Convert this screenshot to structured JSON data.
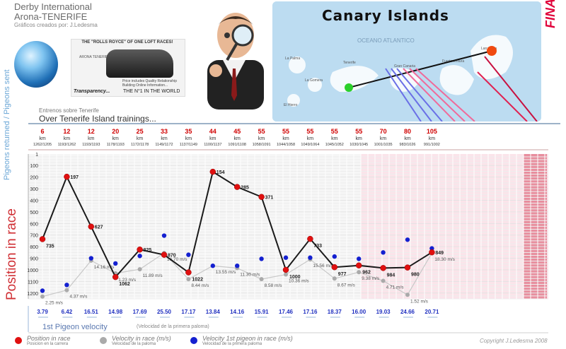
{
  "header": {
    "line1": "Derby International",
    "line2": "Arona-TENERIFE",
    "line3": "Gráficos creados por: J.Ledesma"
  },
  "ad": {
    "title": "THE \"ROLLS ROYCE\" OF ONE LOFT RACES!",
    "brand": "ARONA TENERIFE",
    "sub1": "Price includes Quality Relationship",
    "sub2": "Building Online Information...",
    "sub3": "",
    "transparency": "Transparency...",
    "n1": "THE N°1 IN THE WORLD"
  },
  "map": {
    "title": "Canary Islands",
    "ocean": "OCEANO ATLANTICO",
    "islands": [
      "Lanzarote",
      "Fuerteventura",
      "Gran Canaria",
      "Tenerife",
      "La Gomera",
      "La Palma",
      "El Hierro"
    ]
  },
  "final_race": "FINAL RACE",
  "section": {
    "small": "Entrenos sobre Tenerife",
    "big": "Over Tenerife Island trainings..."
  },
  "axis_labels": {
    "pigeons": "Pigeons returned / Pigeons sent",
    "position": "Position in race"
  },
  "first_velocity": {
    "label": "1st Pigeon velocity",
    "sub": "(Velocidad de la primera paloma)"
  },
  "legend": {
    "pos": "Position in race",
    "pos_sub": "Posicion en la carrera",
    "vel": "Velocity in race (m/s)",
    "vel_sub": "Velocidad de la paloma",
    "first": "Velocity 1st pigeon in race (m/s)",
    "first_sub": "Velocidad de la primera paloma"
  },
  "copyright": "Copyright J.Ledesma 2008",
  "colors": {
    "position": "#e01010",
    "velocity": "#aaaaaa",
    "first_velocity": "#1420d0",
    "distance": "#d00000",
    "final_band": "#fbe4ea",
    "final_band_dark": "#e88e9e"
  },
  "chart_data": {
    "type": "line",
    "km_unit": "km",
    "distances_km": [
      "6",
      "12",
      "12",
      "20",
      "25",
      "33",
      "35",
      "44",
      "45",
      "55",
      "55",
      "55",
      "55",
      "55",
      "70",
      "80",
      "105"
    ],
    "pigeons": [
      "1262/1205",
      "1193/1262",
      "1193/1193",
      "1178/1193",
      "1172/1178",
      "1149/1172",
      "1137/1149",
      "1100/1137",
      "1091/1108",
      "1058/1091",
      "1044/1058",
      "1049/1064",
      "1045/1052",
      "1030/1045",
      "1001/1035",
      "983/1026",
      "991/1002"
    ],
    "y_ticks": [
      "1",
      "100",
      "200",
      "300",
      "400",
      "500",
      "600",
      "700",
      "800",
      "900",
      "1000",
      "1100",
      "1200"
    ],
    "ylim": [
      1,
      1250
    ],
    "position_series": {
      "name": "Position in race",
      "points": [
        {
          "x": 1,
          "y": 735,
          "label": "735"
        },
        {
          "x": 2,
          "y": 197,
          "label": "197"
        },
        {
          "x": 3,
          "y": 627,
          "label": "627"
        },
        {
          "x": 4,
          "y": 1062,
          "label": "1062"
        },
        {
          "x": 5,
          "y": 825,
          "label": "825"
        },
        {
          "x": 6,
          "y": 870,
          "label": "870"
        },
        {
          "x": 7,
          "y": 1022,
          "label": "1022"
        },
        {
          "x": 8,
          "y": 154,
          "label": "154"
        },
        {
          "x": 9,
          "y": 285,
          "label": "285"
        },
        {
          "x": 10,
          "y": 371,
          "label": "371"
        },
        {
          "x": 11,
          "y": 1000,
          "label": "1000"
        },
        {
          "x": 12,
          "y": 733,
          "label": "733"
        },
        {
          "x": 13,
          "y": 977,
          "label": "977"
        },
        {
          "x": 14,
          "y": 962,
          "label": "962"
        },
        {
          "x": 15,
          "y": 984,
          "label": "984"
        },
        {
          "x": 16,
          "y": 980,
          "label": "980"
        },
        {
          "x": 17,
          "y": 849,
          "label": "849"
        }
      ]
    },
    "velocity_series": {
      "name": "Velocity in race (m/s)",
      "points": [
        {
          "x": 1,
          "y": 1230,
          "label": "2.25 m/s"
        },
        {
          "x": 2,
          "y": 1175,
          "label": "4.37 m/s"
        },
        {
          "x": 3,
          "y": 920,
          "label": "14.16 m/s"
        },
        {
          "x": 4,
          "y": 1030,
          "label": "1.23 m/s"
        },
        {
          "x": 5,
          "y": 995,
          "label": "11.89 m/s"
        },
        {
          "x": 6,
          "y": 855,
          "label": "16.70 m/s"
        },
        {
          "x": 7,
          "y": 1080,
          "label": "8.44 m/s"
        },
        {
          "x": 8,
          "y": 965,
          "label": "13.55 m/s"
        },
        {
          "x": 9,
          "y": 985,
          "label": "11.30 m/s"
        },
        {
          "x": 10,
          "y": 1080,
          "label": "8.58 m/s"
        },
        {
          "x": 11,
          "y": 1040,
          "label": "10.36 m/s"
        },
        {
          "x": 12,
          "y": 910,
          "label": "15.56 m/s"
        },
        {
          "x": 13,
          "y": 1075,
          "label": "8.67 m/s"
        },
        {
          "x": 14,
          "y": 1020,
          "label": "9.38 m/s"
        },
        {
          "x": 15,
          "y": 1095,
          "label": "4.71 m/s"
        },
        {
          "x": 16,
          "y": 1215,
          "label": "1.52 m/s"
        },
        {
          "x": 17,
          "y": 855,
          "label": "18.30 m/s"
        }
      ]
    },
    "first_velocity_series": {
      "name": "Velocity 1st pigeon in race (m/s)",
      "values": [
        "3.79",
        "6.42",
        "16.51",
        "14.98",
        "17.69",
        "25.50",
        "17.17",
        "13.84",
        "14.16",
        "15.91",
        "17.46",
        "17.16",
        "18.37",
        "16.00",
        "19.03",
        "24.66",
        "20.71"
      ],
      "points": [
        1180,
        1130,
        900,
        945,
        880,
        705,
        870,
        965,
        965,
        905,
        895,
        895,
        885,
        905,
        850,
        740,
        815
      ]
    }
  }
}
